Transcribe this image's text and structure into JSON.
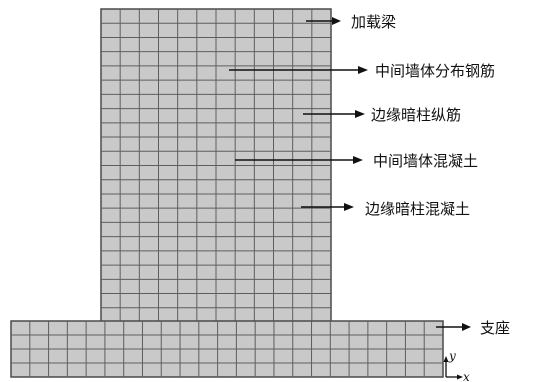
{
  "labels": {
    "loading_beam": "加载梁",
    "middle_wall_rebar": "中间墙体分布钢筋",
    "edge_column_long_rebar": "边缘暗柱纵筋",
    "middle_wall_concrete": "中间墙体混凝土",
    "edge_column_concrete": "边缘暗柱混凝土",
    "support": "支座"
  },
  "axes": {
    "y": "y",
    "x": "x"
  },
  "colors": {
    "mesh_fill": "#c8c8c8",
    "mesh_line": "#5a5a5a",
    "leader": "#111111"
  }
}
